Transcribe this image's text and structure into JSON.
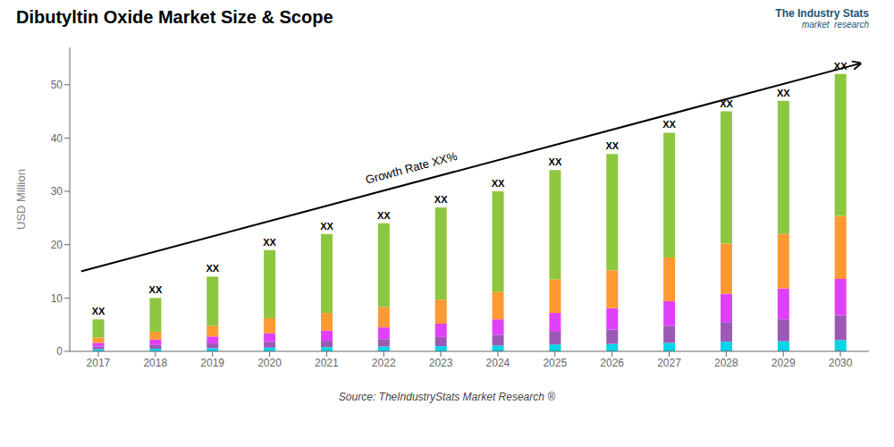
{
  "chart_data": {
    "type": "bar",
    "stacked": true,
    "title": "Dibutyltin Oxide Market Size & Scope",
    "y_label": "USD Million",
    "categories": [
      "2017",
      "2018",
      "2019",
      "2020",
      "2021",
      "2022",
      "2023",
      "2024",
      "2025",
      "2026",
      "2027",
      "2028",
      "2029",
      "2030"
    ],
    "series": [
      {
        "color": "#00d4e8",
        "values": [
          0.4,
          0.5,
          0.6,
          0.7,
          0.8,
          0.9,
          1.0,
          1.1,
          1.3,
          1.4,
          1.6,
          1.8,
          1.9,
          2.1
        ]
      },
      {
        "color": "#9b59b6",
        "values": [
          0.5,
          0.7,
          0.9,
          1.1,
          1.2,
          1.4,
          1.7,
          2.0,
          2.4,
          2.7,
          3.2,
          3.7,
          4.1,
          4.7
        ]
      },
      {
        "color": "#e040fb",
        "values": [
          0.7,
          1.0,
          1.3,
          1.6,
          1.9,
          2.2,
          2.5,
          2.9,
          3.5,
          4.0,
          4.6,
          5.3,
          5.8,
          6.8
        ]
      },
      {
        "color": "#ff9933",
        "values": [
          1.0,
          1.5,
          2.0,
          2.8,
          3.3,
          3.8,
          4.5,
          5.2,
          6.3,
          7.1,
          8.2,
          9.4,
          10.2,
          11.8
        ]
      },
      {
        "color": "#8dc63f",
        "values": [
          3.4,
          6.3,
          9.2,
          12.8,
          14.8,
          15.7,
          17.3,
          18.8,
          20.5,
          21.8,
          23.4,
          24.8,
          25.0,
          26.6
        ]
      }
    ],
    "total_label": "XX",
    "annotations": [
      "Growth Rate XX%"
    ],
    "source": "Source: TheIndustryStats Market Research ®",
    "branding": [
      "The Industry Stats",
      "market  research"
    ],
    "ylim": [
      0,
      57
    ],
    "yticks": [
      0,
      10,
      20,
      30,
      40,
      50
    ],
    "grid": false
  }
}
